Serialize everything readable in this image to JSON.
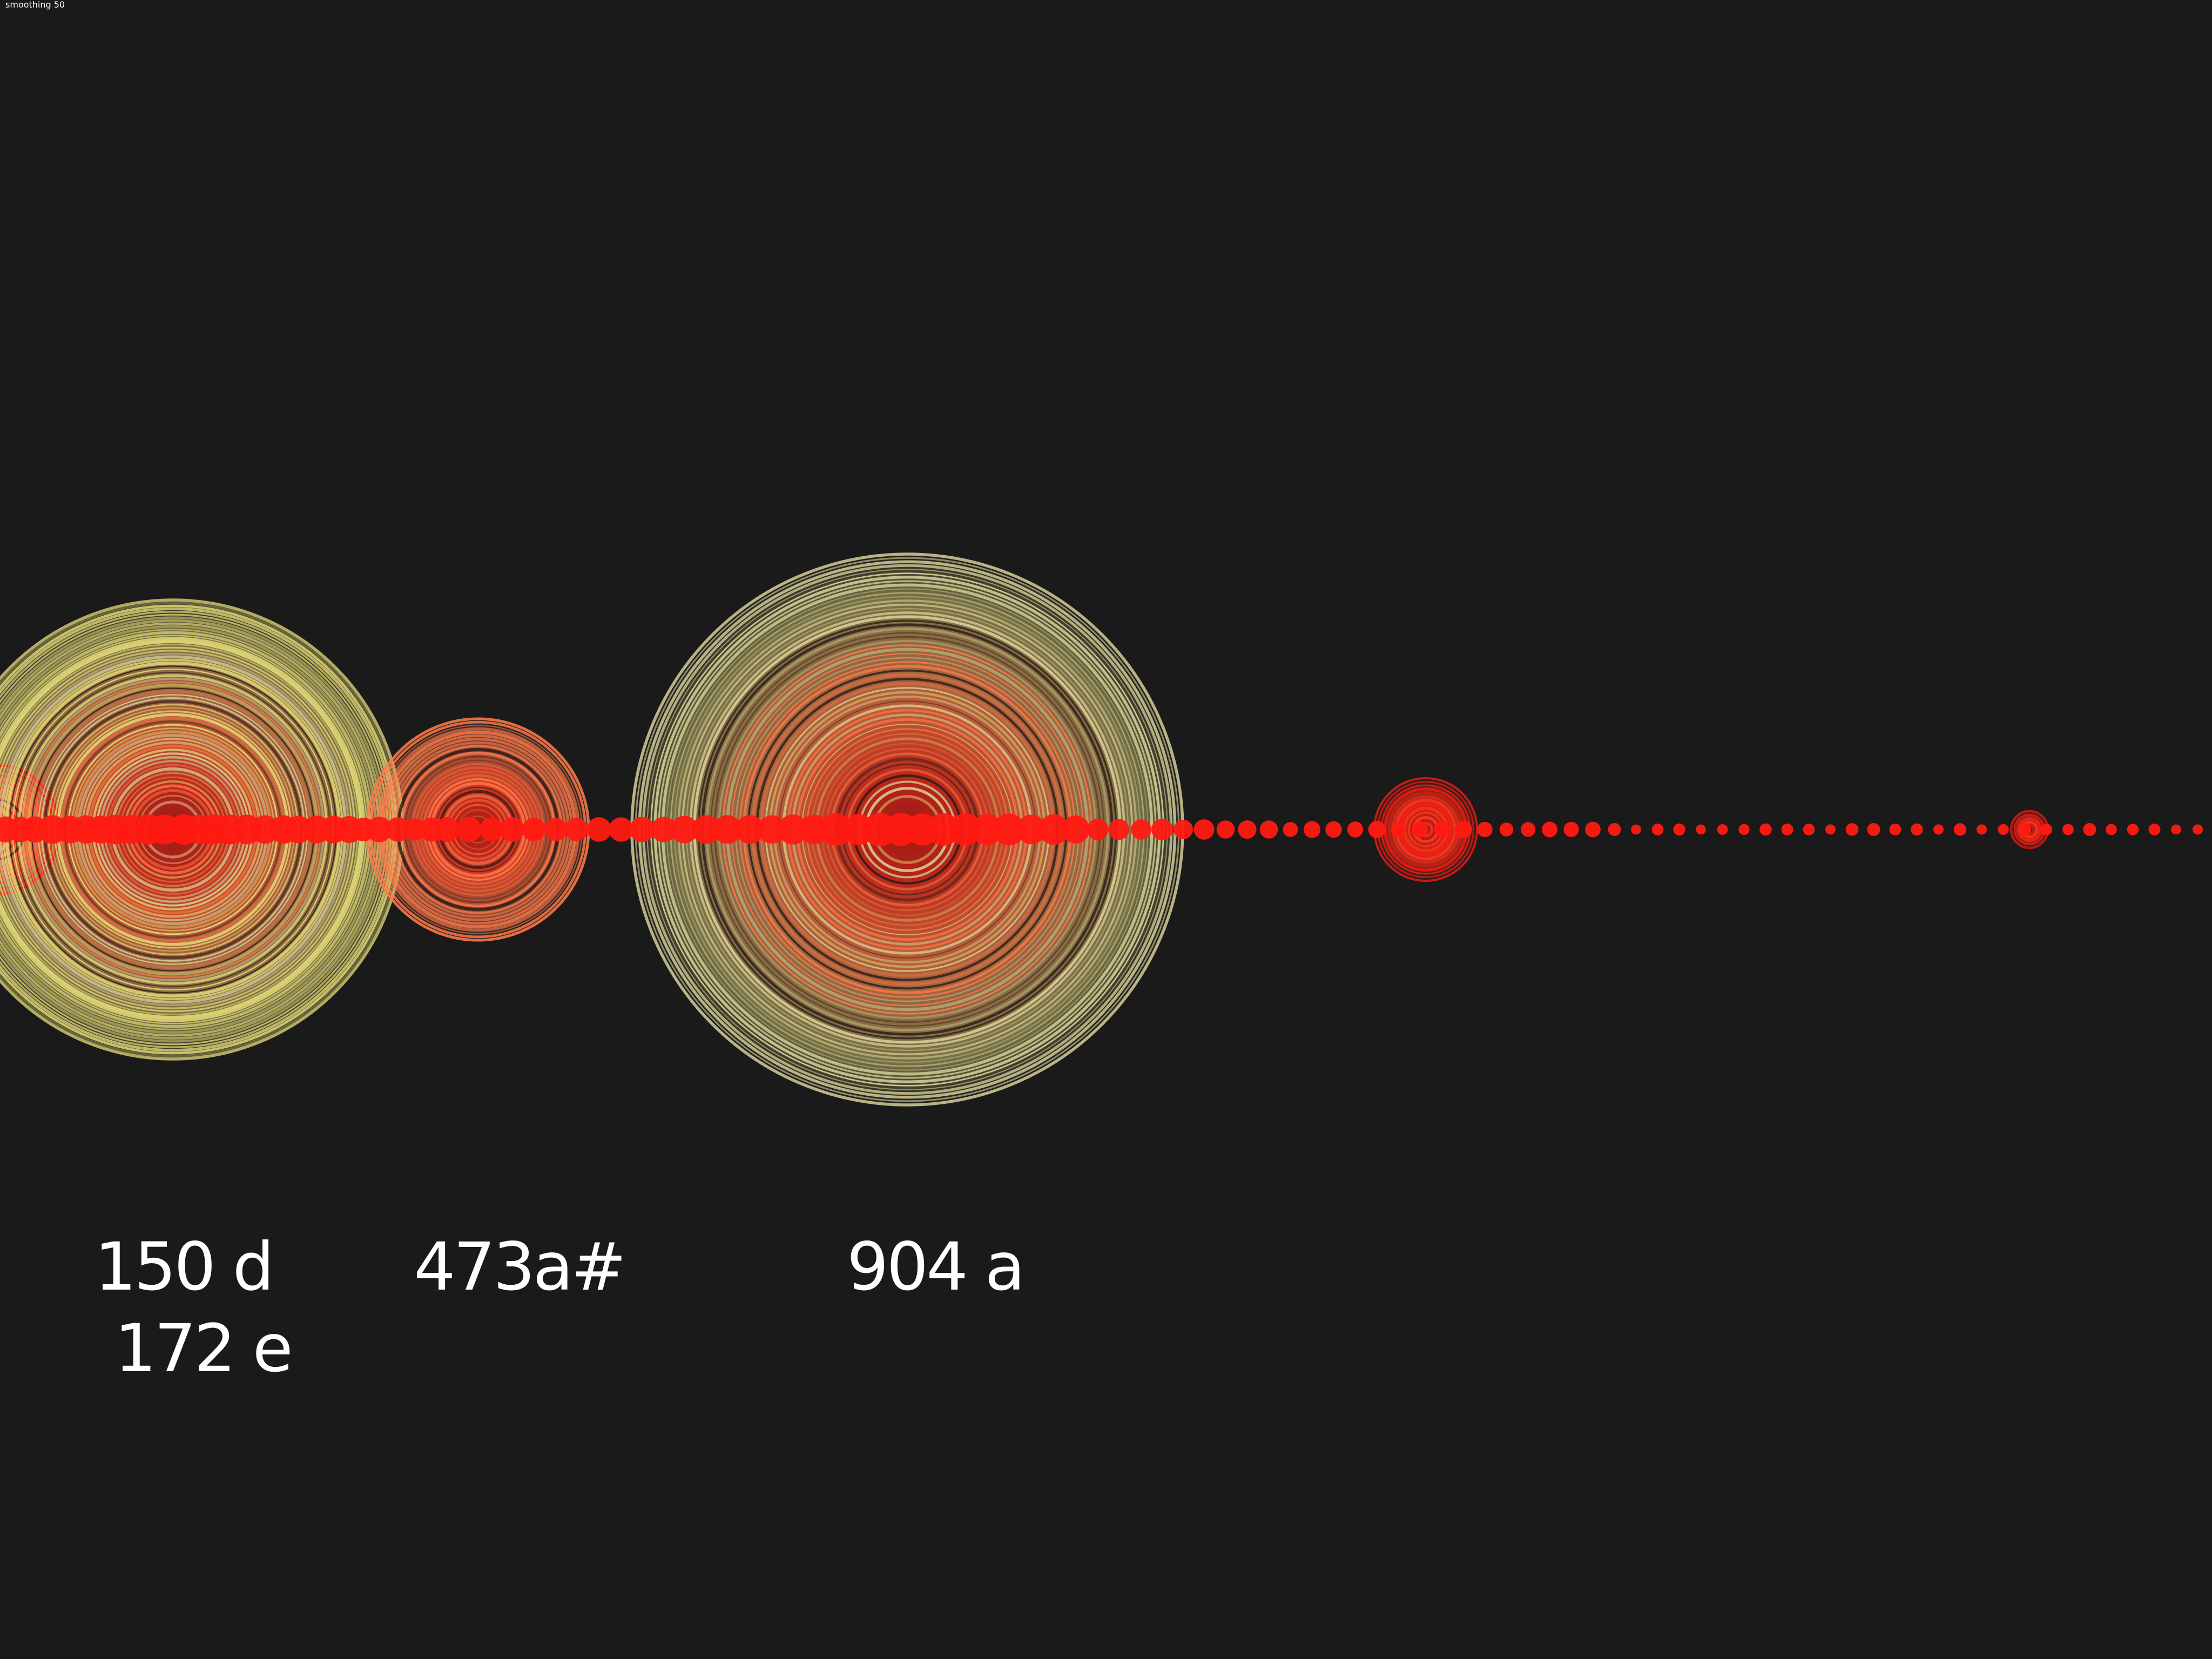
{
  "status": {
    "smoothing_label": "smoothing",
    "smoothing_value": "50"
  },
  "colors": {
    "background": "#1a1a1a",
    "dot": "#ff1a12",
    "ring_warm": "#ff7a4a",
    "ring_yellow": "#e6dc78",
    "ring_pale": "#d8d29a",
    "ring_dark": "#2a1a1a",
    "label_text": "#ffffff"
  },
  "labels": [
    "150 d",
    "172 e",
    "473a#",
    "904 a"
  ],
  "peaks": [
    {
      "label": "150 d",
      "frequency": 150,
      "note": "d",
      "strength": 1.0
    },
    {
      "label": "172 e",
      "frequency": 172,
      "note": "e",
      "strength": 0.95
    },
    {
      "label": "473a#",
      "frequency": 473,
      "note": "a#",
      "strength": 0.45
    },
    {
      "label": "904 a",
      "frequency": 904,
      "note": "a",
      "strength": 1.0
    }
  ]
}
